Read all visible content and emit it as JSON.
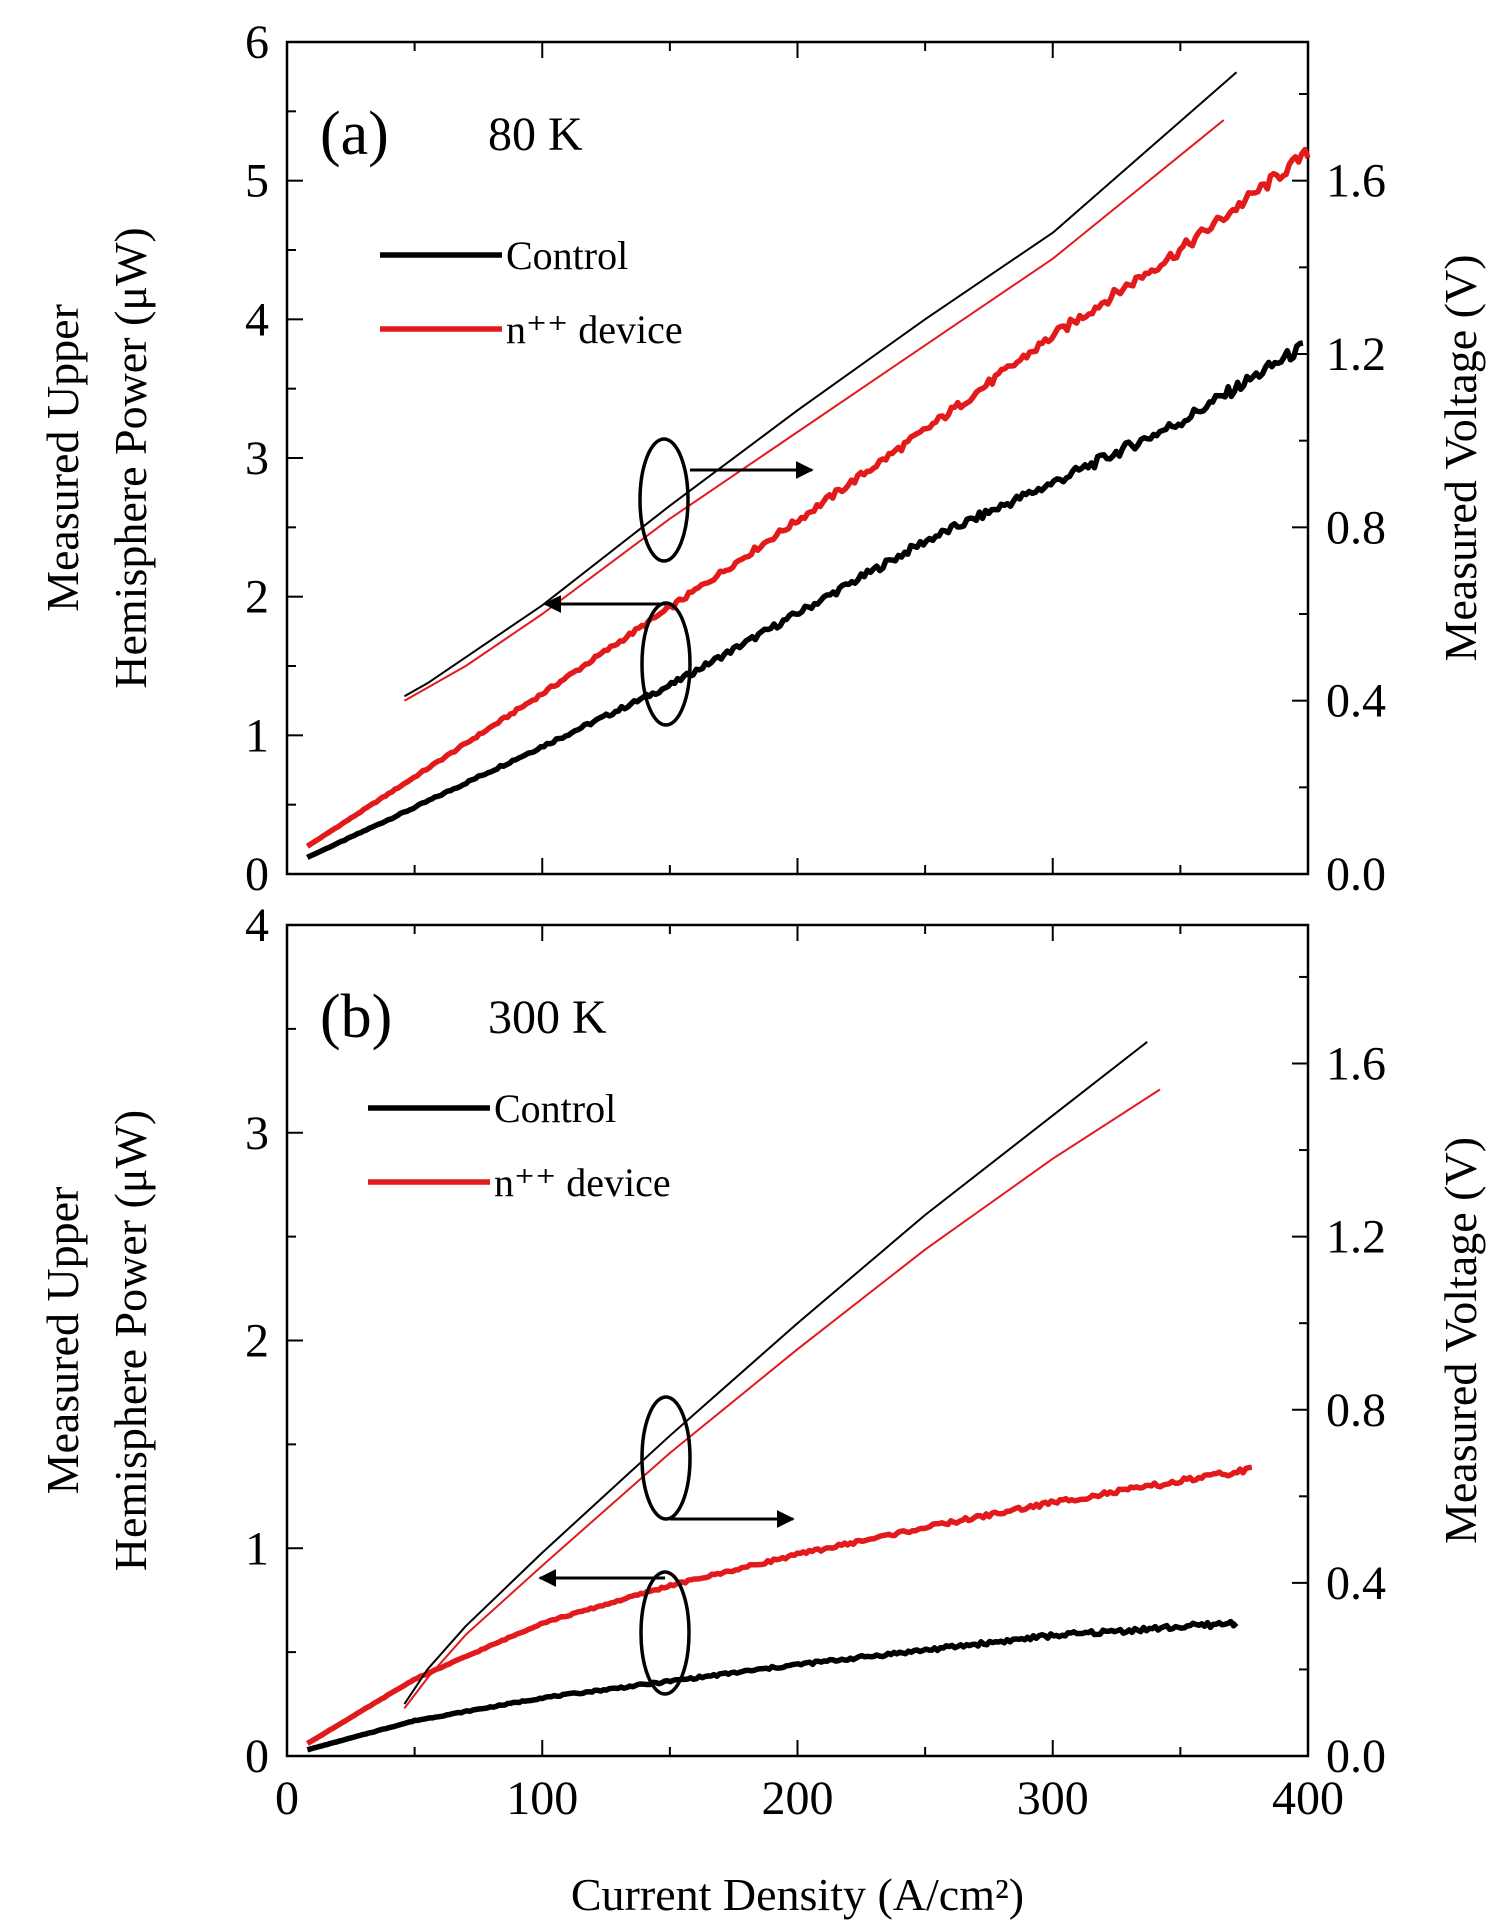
{
  "chart_data": [
    {
      "type": "line",
      "panel_label": "(a)",
      "temperature_label": "80 K",
      "xlabel": "Current Density (A/cm²)",
      "ylabel_left": [
        "Measured Upper",
        "Hemisphere Power (μW)"
      ],
      "ylabel_right": "Measured Voltage (V)",
      "xlim": [
        0,
        400
      ],
      "ylim_left": [
        0,
        6
      ],
      "ylim_right": [
        0,
        1.92
      ],
      "x_ticks": [
        0,
        100,
        200,
        300,
        400
      ],
      "y_ticks_left": [
        0,
        1,
        2,
        3,
        4,
        5,
        6
      ],
      "y_ticks_right": [
        0,
        0.4,
        0.8,
        1.2,
        1.6
      ],
      "y_tick_labels_right": [
        "0.0",
        "0.4",
        "0.8",
        "1.2",
        "1.6"
      ],
      "legend": {
        "position": "upper-left",
        "entries": [
          "Control",
          "n⁺⁺ device"
        ]
      },
      "colors": {
        "Control": "#000000",
        "n++ device": "#e31a1c"
      },
      "series": [
        {
          "name": "Control",
          "axis": "left",
          "quantity": "power",
          "x": [
            8,
            50,
            100,
            150,
            200,
            250,
            300,
            350,
            398
          ],
          "y": [
            0.12,
            0.48,
            0.92,
            1.36,
            1.88,
            2.4,
            2.82,
            3.26,
            3.8
          ]
        },
        {
          "name": "n++ device",
          "axis": "left",
          "quantity": "power",
          "x": [
            8,
            50,
            100,
            150,
            200,
            250,
            300,
            350,
            400
          ],
          "y": [
            0.2,
            0.7,
            1.3,
            1.92,
            2.55,
            3.2,
            3.88,
            4.5,
            5.2
          ]
        },
        {
          "name": "Control",
          "axis": "right",
          "quantity": "voltage",
          "x": [
            46,
            55,
            70,
            100,
            150,
            200,
            250,
            300,
            372
          ],
          "y": [
            0.41,
            0.44,
            0.5,
            0.62,
            0.85,
            1.07,
            1.28,
            1.48,
            1.85
          ]
        },
        {
          "name": "n++ device",
          "axis": "right",
          "quantity": "voltage",
          "x": [
            46,
            55,
            70,
            100,
            150,
            200,
            250,
            300,
            367
          ],
          "y": [
            0.4,
            0.43,
            0.48,
            0.6,
            0.82,
            1.02,
            1.22,
            1.42,
            1.74
          ]
        }
      ],
      "annotations": [
        {
          "type": "ellipse-arrow",
          "direction": "right",
          "target_axis": "right"
        },
        {
          "type": "ellipse-arrow",
          "direction": "left",
          "target_axis": "left"
        }
      ]
    },
    {
      "type": "line",
      "panel_label": "(b)",
      "temperature_label": "300 K",
      "xlabel": "Current Density (A/cm²)",
      "ylabel_left": [
        "Measured Upper",
        "Hemisphere Power (μW)"
      ],
      "ylabel_right": "Measured Voltage (V)",
      "xlim": [
        0,
        400
      ],
      "ylim_left": [
        0,
        4
      ],
      "ylim_right": [
        0,
        1.92
      ],
      "x_ticks": [
        0,
        100,
        200,
        300,
        400
      ],
      "y_ticks_left": [
        0,
        1,
        2,
        3,
        4
      ],
      "y_ticks_right": [
        0,
        0.4,
        0.8,
        1.2,
        1.6
      ],
      "y_tick_labels_right": [
        "0.0",
        "0.4",
        "0.8",
        "1.2",
        "1.6"
      ],
      "legend": {
        "position": "upper-left",
        "entries": [
          "Control",
          "n⁺⁺ device"
        ]
      },
      "colors": {
        "Control": "#000000",
        "n++ device": "#e31a1c"
      },
      "series": [
        {
          "name": "Control",
          "axis": "left",
          "quantity": "power",
          "x": [
            8,
            50,
            100,
            150,
            200,
            250,
            300,
            372
          ],
          "y": [
            0.03,
            0.17,
            0.28,
            0.36,
            0.44,
            0.51,
            0.58,
            0.64
          ]
        },
        {
          "name": "n++ device",
          "axis": "left",
          "quantity": "power",
          "x": [
            8,
            50,
            100,
            150,
            200,
            250,
            300,
            378
          ],
          "y": [
            0.06,
            0.37,
            0.64,
            0.82,
            0.97,
            1.1,
            1.22,
            1.38
          ]
        },
        {
          "name": "Control",
          "axis": "right",
          "quantity": "voltage",
          "x": [
            46,
            55,
            70,
            100,
            150,
            200,
            250,
            300,
            337
          ],
          "y": [
            0.12,
            0.2,
            0.3,
            0.47,
            0.74,
            1.0,
            1.25,
            1.48,
            1.65
          ]
        },
        {
          "name": "n++ device",
          "axis": "right",
          "quantity": "voltage",
          "x": [
            46,
            55,
            70,
            100,
            150,
            200,
            250,
            300,
            342
          ],
          "y": [
            0.11,
            0.18,
            0.28,
            0.44,
            0.7,
            0.94,
            1.17,
            1.38,
            1.54
          ]
        }
      ],
      "annotations": [
        {
          "type": "ellipse-arrow",
          "direction": "right",
          "target_axis": "right"
        },
        {
          "type": "ellipse-arrow",
          "direction": "left",
          "target_axis": "left"
        }
      ]
    }
  ]
}
